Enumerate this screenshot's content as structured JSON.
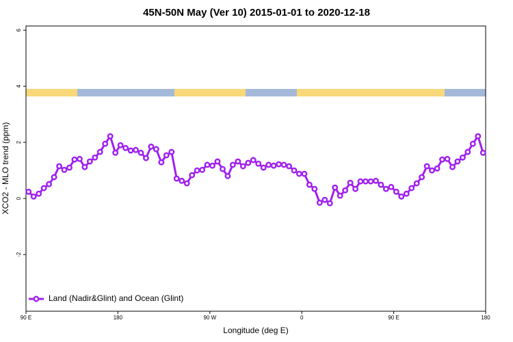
{
  "chart_data": {
    "type": "line",
    "title": "45N-50N May (Ver 10)   2015-01-01 to 2020-12-18",
    "x_label": "Longitude (deg E)",
    "y_label": "XCO2 - MLO trend (ppm)",
    "xlim": [
      90,
      540
    ],
    "xticks": [
      {
        "value": 90,
        "label": "90 E"
      },
      180,
      {
        "value": 270,
        "label": "90 W"
      },
      {
        "value": 360,
        "label": "0"
      },
      {
        "value": 450,
        "label": "90 E"
      },
      {
        "value": 540,
        "label": "180"
      }
    ],
    "ylim": [
      -4.02,
      6.15
    ],
    "yticks": [
      -2,
      0,
      2,
      4,
      6
    ],
    "legend": "bottom-left",
    "x": [
      92.5,
      97.5,
      102.5,
      107.5,
      112.5,
      117.5,
      122.5,
      127.5,
      132.5,
      137.5,
      142.5,
      147.5,
      152.5,
      157.5,
      162.5,
      167.5,
      172.5,
      177.5,
      182.5,
      187.5,
      192.5,
      197.5,
      202.5,
      207.5,
      212.5,
      217.5,
      222.5,
      227.5,
      232.5,
      237.5,
      242.5,
      247.5,
      252.5,
      257.5,
      262.5,
      267.5,
      272.5,
      277.5,
      282.5,
      287.5,
      292.5,
      297.5,
      302.5,
      307.5,
      312.5,
      317.5,
      322.5,
      327.5,
      332.5,
      337.5,
      342.5,
      347.5,
      352.5,
      357.5,
      362.5,
      367.5,
      372.5,
      377.5,
      382.5,
      387.5,
      392.5,
      397.5,
      402.5,
      407.5,
      412.5,
      417.5,
      422.5,
      427.5,
      432.5,
      437.5,
      442.5,
      447.5,
      452.5,
      457.5,
      462.5,
      467.5,
      472.5,
      477.5,
      482.5,
      487.5,
      492.5,
      497.5,
      502.5,
      507.5,
      512.5,
      517.5,
      522.5,
      527.5,
      532.5,
      537.5
    ],
    "series": [
      {
        "name": "Land (Nadir&Glint) and Ocean (Glint)",
        "color": "#a020f0",
        "values": [
          0.24,
          0.07,
          0.17,
          0.37,
          0.51,
          0.76,
          1.15,
          1.02,
          1.1,
          1.39,
          1.41,
          1.12,
          1.32,
          1.46,
          1.66,
          1.95,
          2.22,
          1.63,
          1.9,
          1.8,
          1.71,
          1.73,
          1.63,
          1.44,
          1.85,
          1.76,
          1.29,
          1.54,
          1.66,
          0.71,
          0.63,
          0.54,
          0.83,
          1.0,
          1.02,
          1.2,
          1.17,
          1.32,
          1.05,
          0.8,
          1.2,
          1.32,
          1.15,
          1.27,
          1.37,
          1.24,
          1.1,
          1.2,
          1.17,
          1.22,
          1.2,
          1.15,
          1.0,
          0.88,
          0.88,
          0.49,
          0.34,
          -0.15,
          -0.05,
          -0.17,
          0.39,
          0.1,
          0.29,
          0.56,
          0.34,
          0.61,
          0.61,
          0.61,
          0.63,
          0.49,
          0.34,
          0.41,
          0.24,
          0.07,
          0.17,
          0.37,
          0.54,
          0.76,
          1.15,
          1.0,
          1.07,
          1.39,
          1.41,
          1.12,
          1.32,
          1.46,
          1.66,
          1.95,
          2.22,
          1.63
        ]
      }
    ]
  }
}
